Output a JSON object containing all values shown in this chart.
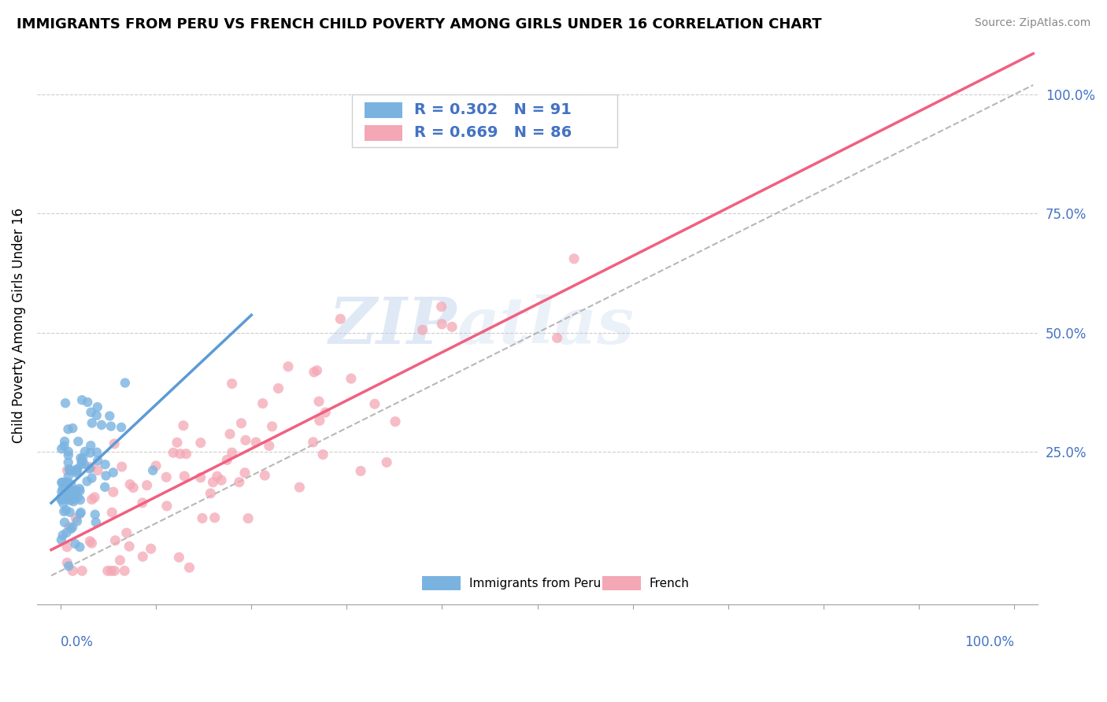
{
  "title": "IMMIGRANTS FROM PERU VS FRENCH CHILD POVERTY AMONG GIRLS UNDER 16 CORRELATION CHART",
  "source": "Source: ZipAtlas.com",
  "ylabel": "Child Poverty Among Girls Under 16",
  "watermark_zip": "ZIP",
  "watermark_atlas": "atlas",
  "legend_entries": [
    {
      "label": "Immigrants from Peru",
      "color": "#aec6e8",
      "R": 0.302,
      "N": 91
    },
    {
      "label": "French",
      "color": "#f4a7b5",
      "R": 0.669,
      "N": 86
    }
  ],
  "blue_color": "#7ab3e0",
  "pink_color": "#f4a7b5",
  "blue_line_color": "#5b9bd5",
  "pink_line_color": "#f06080",
  "gray_line_color": "#b0b0b0",
  "legend_text_color": "#4472c4",
  "background_color": "#ffffff",
  "grid_color": "#c8c8c8",
  "right_tick_color": "#4472c4",
  "axis_label_color": "#4472c4"
}
